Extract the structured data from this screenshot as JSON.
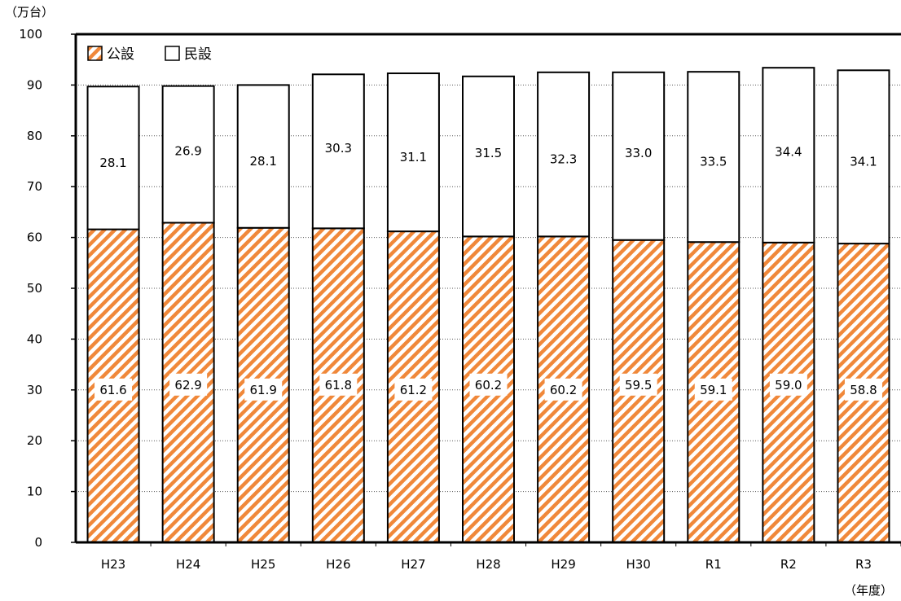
{
  "chart_data": {
    "type": "bar",
    "stacked": true,
    "categories": [
      "H23",
      "H24",
      "H25",
      "H26",
      "H27",
      "H28",
      "H29",
      "H30",
      "R1",
      "R2",
      "R3"
    ],
    "series": [
      {
        "name": "公設",
        "values": [
          61.6,
          62.9,
          61.9,
          61.8,
          61.2,
          60.2,
          60.2,
          59.5,
          59.1,
          59.0,
          58.8
        ],
        "fill": "hatched",
        "color": "#f0883a"
      },
      {
        "name": "民設",
        "values": [
          28.1,
          26.9,
          28.1,
          30.3,
          31.1,
          31.5,
          32.3,
          33.0,
          33.5,
          34.4,
          34.1
        ],
        "fill": "white",
        "color": "#ffffff"
      }
    ],
    "y_unit": "（万台）",
    "x_unit": "（年度）",
    "ylim": [
      0,
      100
    ],
    "yticks": [
      0,
      10,
      20,
      30,
      40,
      50,
      60,
      70,
      80,
      90,
      100
    ],
    "grid": true,
    "legend_position": "top-left"
  }
}
